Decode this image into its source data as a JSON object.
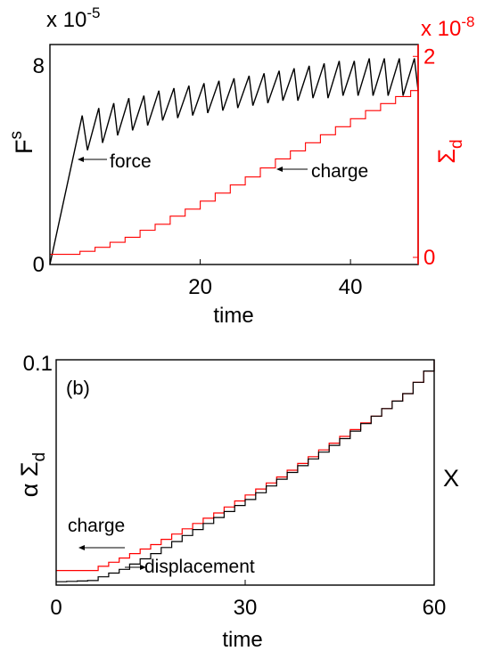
{
  "chart_data": [
    {
      "type": "line",
      "panel_label": "",
      "xlabel": "time",
      "xlim": [
        0,
        49
      ],
      "xticks": [
        20,
        40
      ],
      "left_axis": {
        "label_main": "F",
        "label_sup": "s",
        "ylim": [
          0,
          8.5
        ],
        "ticks": [
          0,
          8
        ],
        "exponent": "x 10",
        "exponent_power": "-5",
        "color": "#000000"
      },
      "right_axis": {
        "label_main": "Σ",
        "label_sub": "d",
        "ylim": [
          0,
          2.1
        ],
        "ticks": [
          0,
          2
        ],
        "exponent": "x 10",
        "exponent_power": "-8",
        "color": "#ff0000"
      },
      "annotations": [
        "force",
        "charge"
      ],
      "series": [
        {
          "axis": "left",
          "color": "#000000",
          "points": [
            [
              0,
              0
            ],
            [
              4.3,
              6.0
            ],
            [
              5.0,
              4.6
            ],
            [
              6.5,
              6.3
            ],
            [
              7.0,
              4.9
            ],
            [
              8.5,
              6.5
            ],
            [
              9.0,
              5.2
            ],
            [
              10.5,
              6.7
            ],
            [
              11.0,
              5.4
            ],
            [
              12.5,
              6.8
            ],
            [
              13.0,
              5.6
            ],
            [
              14.5,
              7.0
            ],
            [
              15.0,
              5.8
            ],
            [
              16.5,
              7.1
            ],
            [
              17.0,
              5.9
            ],
            [
              18.5,
              7.2
            ],
            [
              19.0,
              6.0
            ],
            [
              20.5,
              7.3
            ],
            [
              21.0,
              6.1
            ],
            [
              22.5,
              7.4
            ],
            [
              23.0,
              6.2
            ],
            [
              24.5,
              7.5
            ],
            [
              25.0,
              6.3
            ],
            [
              26.5,
              7.6
            ],
            [
              27.0,
              6.4
            ],
            [
              28.5,
              7.7
            ],
            [
              29.0,
              6.5
            ],
            [
              30.5,
              7.8
            ],
            [
              31.0,
              6.6
            ],
            [
              32.5,
              7.9
            ],
            [
              33.0,
              6.6
            ],
            [
              34.5,
              8.0
            ],
            [
              35.0,
              6.7
            ],
            [
              36.5,
              8.1
            ],
            [
              37.0,
              6.7
            ],
            [
              38.5,
              8.2
            ],
            [
              39.0,
              6.8
            ],
            [
              40.5,
              8.2
            ],
            [
              41.0,
              6.8
            ],
            [
              42.5,
              8.3
            ],
            [
              43.0,
              6.8
            ],
            [
              44.5,
              8.3
            ],
            [
              45.0,
              6.8
            ],
            [
              46.5,
              8.3
            ],
            [
              47.0,
              6.8
            ],
            [
              48.5,
              8.3
            ],
            [
              49.0,
              7.0
            ]
          ]
        },
        {
          "axis": "right",
          "color": "#ff0000",
          "points": [
            [
              0,
              0.03
            ],
            [
              3,
              0.03
            ],
            [
              4,
              0.06
            ],
            [
              6,
              0.1
            ],
            [
              8,
              0.15
            ],
            [
              10,
              0.2
            ],
            [
              12,
              0.27
            ],
            [
              14,
              0.33
            ],
            [
              16,
              0.41
            ],
            [
              18,
              0.48
            ],
            [
              20,
              0.56
            ],
            [
              22,
              0.64
            ],
            [
              24,
              0.72
            ],
            [
              26,
              0.8
            ],
            [
              28,
              0.89
            ],
            [
              30,
              0.98
            ],
            [
              32,
              1.06
            ],
            [
              34,
              1.14
            ],
            [
              36,
              1.22
            ],
            [
              38,
              1.3
            ],
            [
              40,
              1.38
            ],
            [
              42,
              1.46
            ],
            [
              44,
              1.53
            ],
            [
              46,
              1.6
            ],
            [
              48,
              1.66
            ],
            [
              49,
              1.68
            ]
          ]
        }
      ]
    },
    {
      "type": "line",
      "panel_label": "(b)",
      "xlabel": "time",
      "xlim": [
        0,
        60
      ],
      "xticks": [
        0,
        30,
        60
      ],
      "left_axis": {
        "label_alpha": "α",
        "label_main": "Σ",
        "label_sub": "d",
        "ylim": [
          0,
          0.1
        ],
        "ticks": [
          0.1
        ],
        "color": "#000000"
      },
      "right_label": "X",
      "annotations": [
        "charge",
        "displacement"
      ],
      "series": [
        {
          "name": "charge",
          "color": "#ff0000",
          "points": [
            [
              0,
              0.0065
            ],
            [
              5,
              0.0065
            ],
            [
              10,
              0.012
            ],
            [
              15,
              0.018
            ],
            [
              20,
              0.025
            ],
            [
              25,
              0.032
            ],
            [
              30,
              0.04
            ],
            [
              35,
              0.048
            ],
            [
              40,
              0.057
            ],
            [
              45,
              0.066
            ],
            [
              50,
              0.075
            ],
            [
              55,
              0.085
            ],
            [
              60,
              0.1
            ]
          ]
        },
        {
          "name": "displacement",
          "color": "#000000",
          "points": [
            [
              0,
              0.0015
            ],
            [
              5,
              0.002
            ],
            [
              10,
              0.007
            ],
            [
              15,
              0.014
            ],
            [
              20,
              0.022
            ],
            [
              25,
              0.03
            ],
            [
              30,
              0.038
            ],
            [
              35,
              0.047
            ],
            [
              40,
              0.056
            ],
            [
              45,
              0.065
            ],
            [
              50,
              0.075
            ],
            [
              55,
              0.085
            ],
            [
              60,
              0.1
            ]
          ]
        }
      ]
    }
  ]
}
